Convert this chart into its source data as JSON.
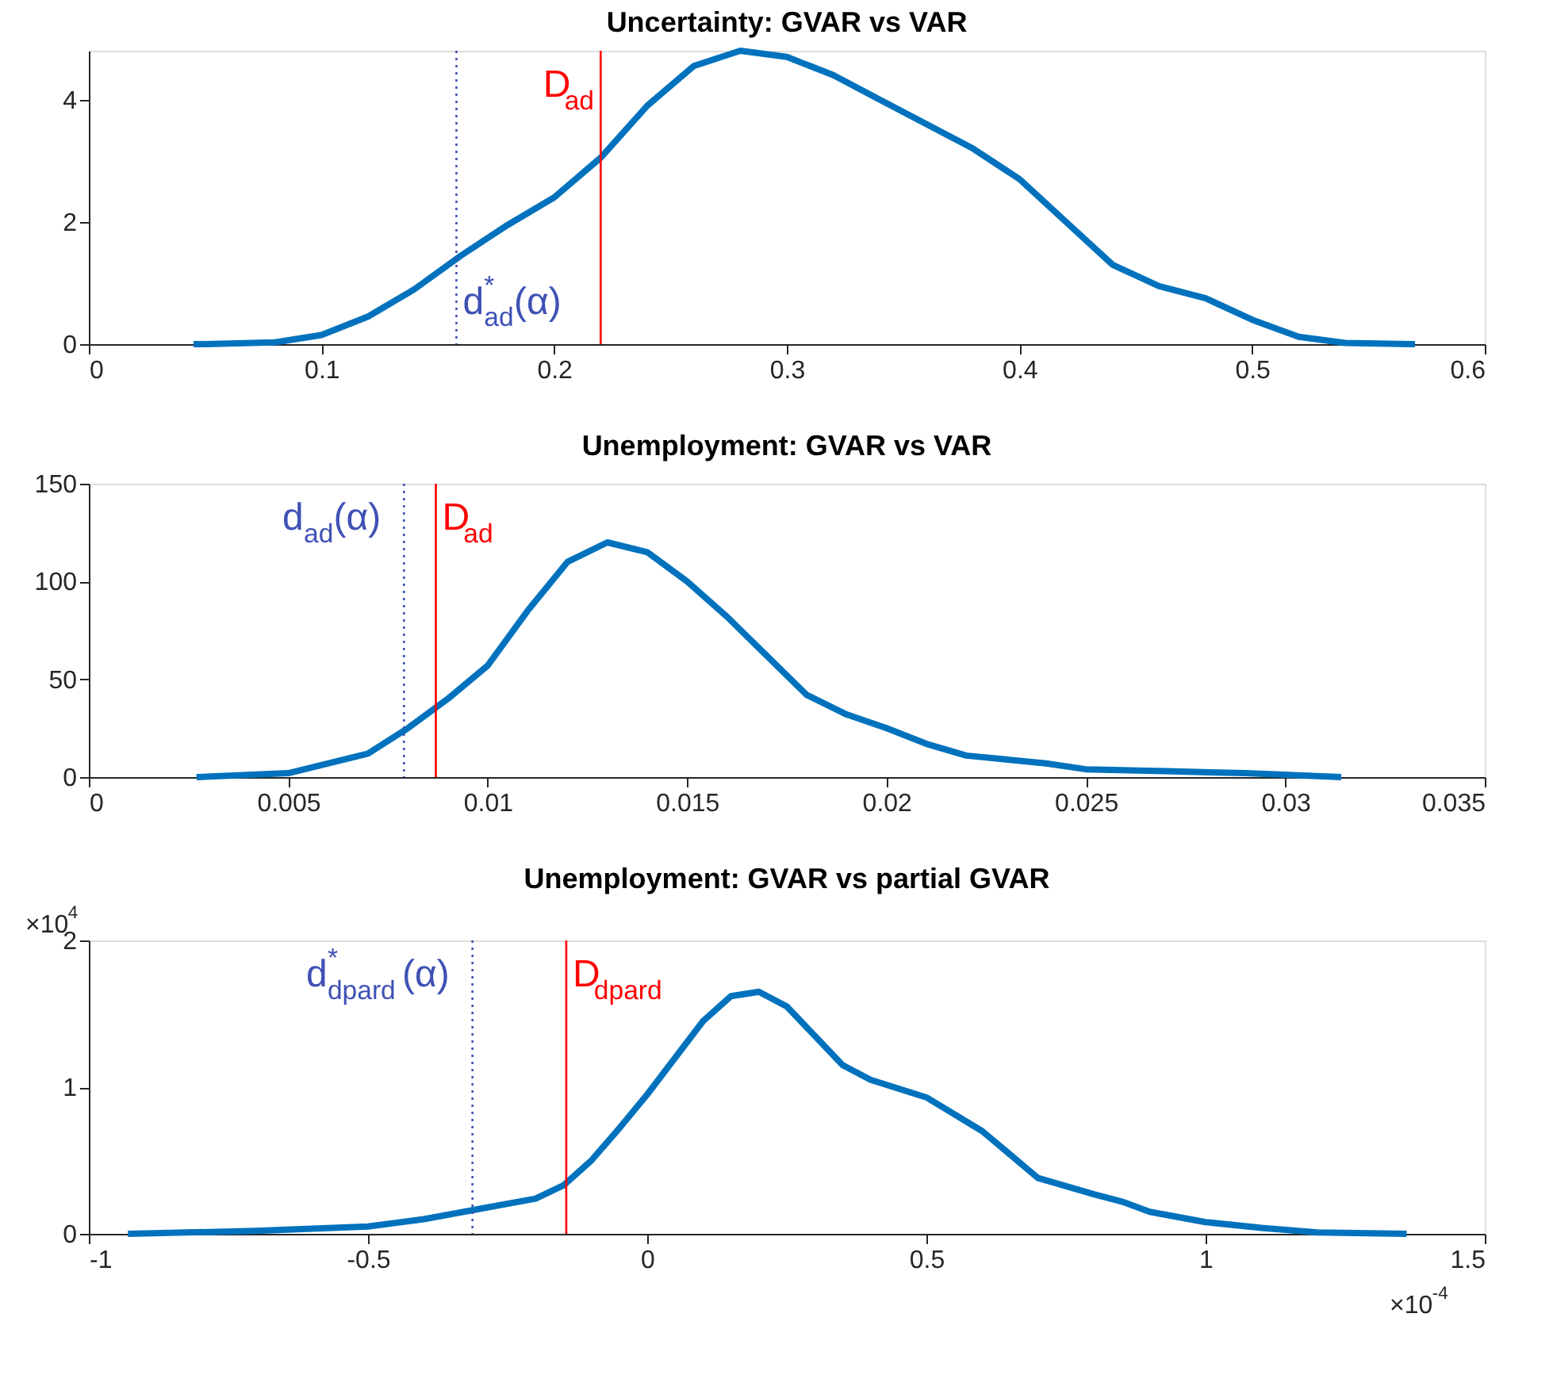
{
  "chart_data": [
    {
      "type": "line",
      "title": "Uncertainty: GVAR vs VAR",
      "xlim": [
        0,
        0.6
      ],
      "xticks": [
        0,
        0.1,
        0.2,
        0.3,
        0.4,
        0.5,
        0.6
      ],
      "ylim": [
        0,
        4.8
      ],
      "yticks": [
        0,
        2,
        4
      ],
      "grid": false,
      "series": [
        {
          "color": "#0072bd",
          "x": [
            0.045,
            0.05,
            0.08,
            0.1,
            0.12,
            0.14,
            0.16,
            0.18,
            0.2,
            0.22,
            0.24,
            0.26,
            0.28,
            0.3,
            0.32,
            0.34,
            0.36,
            0.38,
            0.4,
            0.42,
            0.44,
            0.46,
            0.48,
            0.5,
            0.52,
            0.54,
            0.57
          ],
          "values": [
            0,
            0,
            0.03,
            0.15,
            0.45,
            0.9,
            1.45,
            1.95,
            2.4,
            3.05,
            3.9,
            4.55,
            4.8,
            4.7,
            4.4,
            4.0,
            3.6,
            3.2,
            2.7,
            2.0,
            1.3,
            0.95,
            0.75,
            0.4,
            0.12,
            0.02,
            0
          ]
        }
      ],
      "ref_lines": [
        {
          "axis": "x",
          "value": 0.158,
          "label": "d$^{*}$$_{ad}$(α)",
          "color": "#3f51b5",
          "line_style": "dotted"
        },
        {
          "axis": "x",
          "value": 0.22,
          "label": "D$_{ad}$",
          "color": "#ff0000",
          "line_style": "solid"
        }
      ]
    },
    {
      "type": "line",
      "title": "Unemployment: GVAR vs VAR",
      "xlim": [
        0,
        0.035
      ],
      "xticks": [
        0,
        0.005,
        0.01,
        0.015,
        0.02,
        0.025,
        0.03,
        0.035
      ],
      "ylim": [
        0,
        150
      ],
      "yticks": [
        0,
        50,
        100,
        150
      ],
      "grid": false,
      "series": [
        {
          "color": "#0072bd",
          "x": [
            0.0027,
            0.005,
            0.007,
            0.008,
            0.009,
            0.01,
            0.011,
            0.012,
            0.013,
            0.014,
            0.015,
            0.016,
            0.017,
            0.018,
            0.019,
            0.02,
            0.021,
            0.022,
            0.023,
            0.024,
            0.025,
            0.027,
            0.029,
            0.0314
          ],
          "values": [
            0,
            2,
            12,
            25,
            40,
            57,
            85,
            110,
            120,
            115,
            100,
            82,
            62,
            42,
            32,
            25,
            17,
            11,
            9,
            7,
            4,
            3,
            2,
            0
          ]
        }
      ],
      "ref_lines": [
        {
          "axis": "x",
          "value": 0.0079,
          "label": "d$_{ad}$(α)",
          "color": "#3f51b5",
          "line_style": "dotted"
        },
        {
          "axis": "x",
          "value": 0.0087,
          "label": "D$_{ad}$",
          "color": "#ff0000",
          "line_style": "solid"
        }
      ]
    },
    {
      "type": "line",
      "title": "Unemployment: GVAR vs partial GVAR",
      "xlim": [
        -1,
        1.5
      ],
      "xticks": [
        -1,
        -0.5,
        0,
        0.5,
        1,
        1.5
      ],
      "ylim": [
        0,
        2
      ],
      "yticks": [
        0,
        1,
        2
      ],
      "grid": false,
      "annotations": [
        "×10$^{4}$",
        "×10$^{-4}$"
      ],
      "series": [
        {
          "color": "#0072bd",
          "x": [
            -0.93,
            -0.7,
            -0.5,
            -0.4,
            -0.3,
            -0.2,
            -0.15,
            -0.1,
            -0.05,
            0,
            0.05,
            0.1,
            0.15,
            0.2,
            0.25,
            0.3,
            0.35,
            0.4,
            0.5,
            0.6,
            0.7,
            0.8,
            0.85,
            0.9,
            1.0,
            1.1,
            1.2,
            1.36
          ],
          "values": [
            0,
            0.02,
            0.05,
            0.1,
            0.17,
            0.24,
            0.33,
            0.5,
            0.72,
            0.95,
            1.2,
            1.45,
            1.62,
            1.65,
            1.55,
            1.35,
            1.15,
            1.05,
            0.93,
            0.7,
            0.38,
            0.27,
            0.22,
            0.15,
            0.08,
            0.04,
            0.01,
            0
          ]
        }
      ],
      "ref_lines": [
        {
          "axis": "x",
          "value": -0.313,
          "label": "d$^{*}$$_{dpard}$(α)",
          "color": "#3f51b5",
          "line_style": "dotted"
        },
        {
          "axis": "x",
          "value": -0.145,
          "label": "D$_{dpard}$",
          "color": "#ff0000",
          "line_style": "solid"
        }
      ]
    }
  ]
}
